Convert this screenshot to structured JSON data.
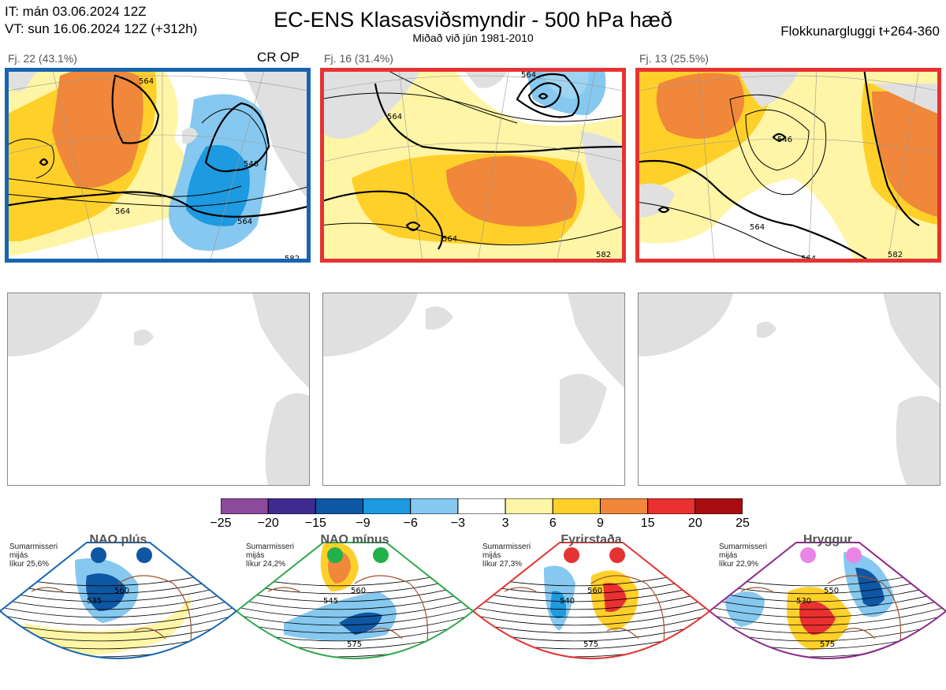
{
  "header": {
    "it_line": "IT: mán 03.06.2024 12Z",
    "vt_line": "VT: sun 16.06.2024 12Z  (+312h)",
    "title": "EC-ENS Klasasviðsmyndir - 500 hPa hæð",
    "subtitle": "Miðað við jún 1981-2010",
    "window": "Flokkunargluggi t+264-360"
  },
  "clusters": [
    {
      "label": "Fj. 22 (43.1%)",
      "border_color": "#1565b0",
      "contours": [
        "564",
        "564",
        "546",
        "564",
        "582"
      ]
    },
    {
      "label": "Fj. 16 (31.4%)",
      "border_color": "#e53333",
      "contours": [
        "564",
        "564",
        "564",
        "582"
      ]
    },
    {
      "label": "Fj. 13 (25.5%)",
      "border_color": "#e53333",
      "contours": [
        "546",
        "564",
        "564",
        "582"
      ]
    }
  ],
  "crop_label": "CR OP",
  "colorbar": {
    "ticks": [
      "−25",
      "−20",
      "−15",
      "−9",
      "−6",
      "−3",
      "3",
      "6",
      "9",
      "15",
      "20",
      "25"
    ],
    "colors": [
      "#8d4a9c",
      "#3f2b8f",
      "#0d57a3",
      "#1d9ae0",
      "#86c8ef",
      "#ffffff",
      "#fff5a6",
      "#ffd02a",
      "#f0873a",
      "#ea3030",
      "#a80d10"
    ]
  },
  "regimes": [
    {
      "name": "NAO plús",
      "note": [
        "Sumarmisseri",
        "mijás",
        "líkur 25,6%"
      ],
      "color": "#1565b0",
      "dot_color": "#0d57a3",
      "contours": [
        "535",
        "560"
      ]
    },
    {
      "name": "NAO mínus",
      "note": [
        "Sumarmisseri",
        "mijás",
        "líkur 24,2%"
      ],
      "color": "#2ea84a",
      "dot_color": "#22b04b",
      "contours": [
        "545",
        "560",
        "575"
      ]
    },
    {
      "name": "Fyrirstaða",
      "note": [
        "Sumarmisseri",
        "mijás",
        "líkur 27,3%"
      ],
      "color": "#e53333",
      "dot_color": "#e53333",
      "contours": [
        "540",
        "560",
        "575"
      ]
    },
    {
      "name": "Hryggur",
      "note": [
        "Sumarmisseri",
        "mijás",
        "líkur 22,9%"
      ],
      "color": "#8b2a8b",
      "dot_color": "#e985e6",
      "contours": [
        "530",
        "550",
        "575"
      ]
    }
  ]
}
